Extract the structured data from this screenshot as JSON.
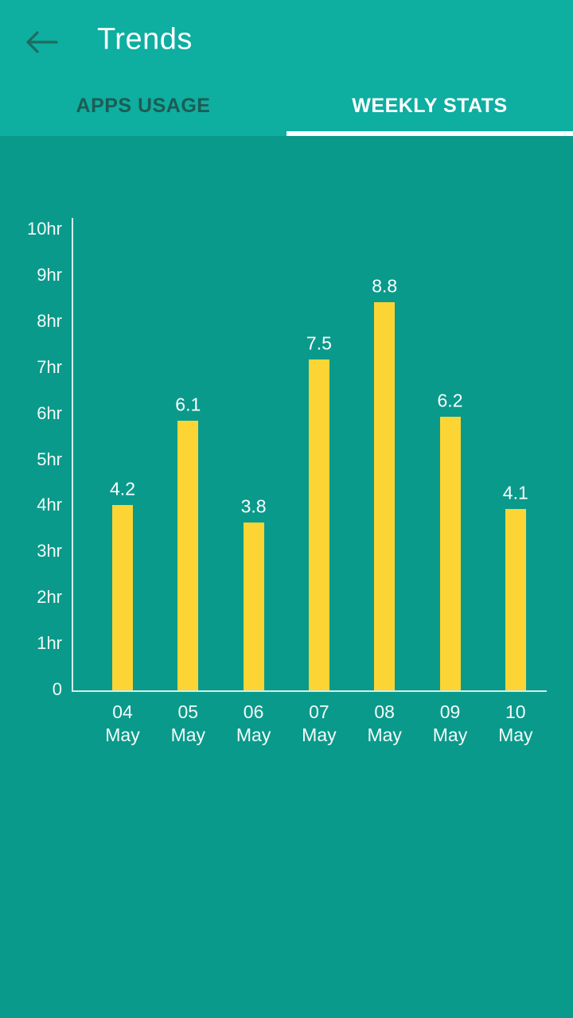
{
  "header": {
    "title": "Trends",
    "back_icon": "arrow-left",
    "tabs": [
      {
        "label": "APPS USAGE",
        "active": false
      },
      {
        "label": "WEEKLY STATS",
        "active": true
      }
    ]
  },
  "colors": {
    "appbar_bg": "#0EAEA0",
    "body_bg": "#0A9A8B",
    "bar_fill": "#FCD535",
    "inactive_tab_text": "#1D5C53",
    "active_tab_text": "#FFFFFF",
    "tab_indicator": "#FFFFFF",
    "axis_line": "#E9F6F3",
    "chart_text": "#FFFFFF",
    "back_arrow": "#1F6B60"
  },
  "chart_data": {
    "type": "bar",
    "categories": [
      {
        "day": "04",
        "month": "May"
      },
      {
        "day": "05",
        "month": "May"
      },
      {
        "day": "06",
        "month": "May"
      },
      {
        "day": "07",
        "month": "May"
      },
      {
        "day": "08",
        "month": "May"
      },
      {
        "day": "09",
        "month": "May"
      },
      {
        "day": "10",
        "month": "May"
      }
    ],
    "values": [
      4.2,
      6.1,
      3.8,
      7.5,
      8.8,
      6.2,
      4.1
    ],
    "value_labels": [
      "4.2",
      "6.1",
      "3.8",
      "7.5",
      "8.8",
      "6.2",
      "4.1"
    ],
    "y_ticks": [
      "0",
      "1hr",
      "2hr",
      "3hr",
      "4hr",
      "5hr",
      "6hr",
      "7hr",
      "8hr",
      "9hr",
      "10hr"
    ],
    "ylim": [
      0,
      10
    ],
    "unit": "hours",
    "xlabel": "",
    "ylabel": "",
    "grid": false,
    "legend": "none"
  }
}
